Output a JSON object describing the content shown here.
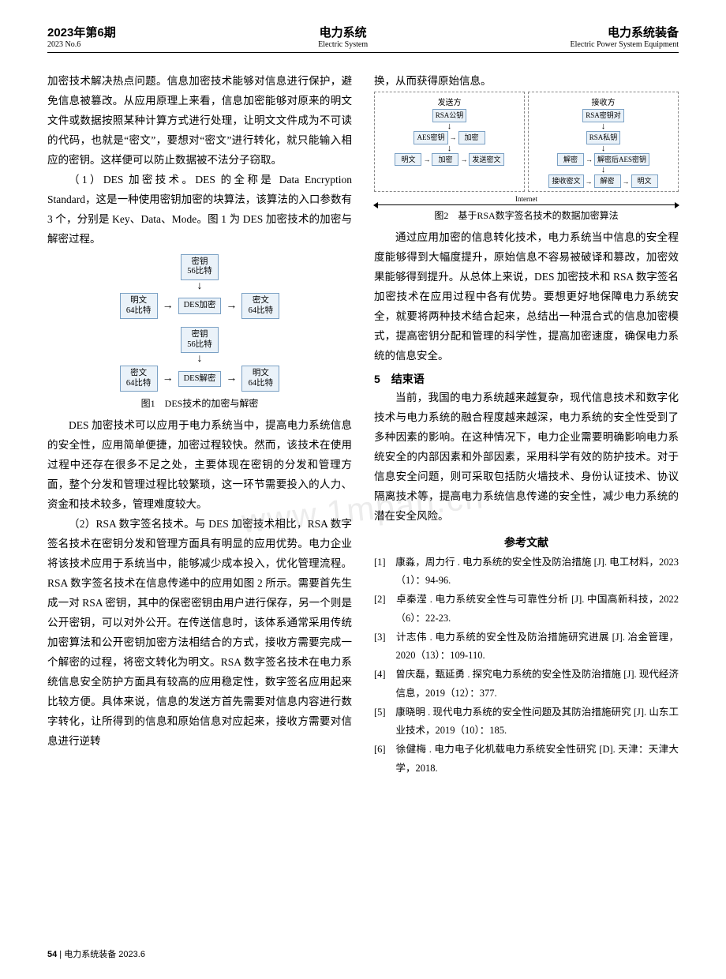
{
  "header": {
    "left_cn": "2023年第6期",
    "left_en": "2023 No.6",
    "center_cn": "电力系统",
    "center_en": "Electric System",
    "right_cn": "电力系统装备",
    "right_en": "Electric Power System Equipment"
  },
  "col_left": {
    "p1": "加密技术解决热点问题。信息加密技术能够对信息进行保护，避免信息被篡改。从应用原理上来看，信息加密能够对原来的明文文件或数据按照某种计算方式进行处理，让明文文件成为不可读的代码，也就是“密文”，要想对“密文”进行转化，就只能输入相应的密钥。这样便可以防止数据被不法分子窃取。",
    "p2": "（1）DES 加密技术。DES 的全称是 Data Encryption Standard，这是一种使用密钥加密的块算法，该算法的入口参数有 3 个，分别是 Key、Data、Mode。图 1 为 DES 加密技术的加密与解密过程。",
    "fig1_cap": "图1　DES技术的加密与解密",
    "p3": "DES 加密技术可以应用于电力系统当中，提高电力系统信息的安全性，应用简单便捷，加密过程较快。然而，该技术在使用过程中还存在很多不足之处，主要体现在密钥的分发和管理方面，整个分发和管理过程比较繁琐，这一环节需要投入的人力、资金和技术较多，管理难度较大。",
    "p4": "（2）RSA 数字签名技术。与 DES 加密技术相比，RSA 数字签名技术在密钥分发和管理方面具有明显的应用优势。电力企业将该技术应用于系统当中，能够减少成本投入，优化管理流程。RSA 数字签名技术在信息传递中的应用如图 2 所示。需要首先生成一对 RSA 密钥，其中的保密密钥由用户进行保存，另一个则是公开密钥，可以对外公开。在传送信息时，该体系通常采用传统加密算法和公开密钥加密方法相结合的方式，接收方需要完成一个解密的过程，将密文转化为明文。RSA 数字签名技术在电力系统信息安全防护方面具有较高的应用稳定性，数字签名应用起来比较方便。具体来说，信息的发送方首先需要对信息内容进行数字转化，让所得到的信息和原始信息对应起来，接收方需要对信息进行逆转"
  },
  "fig1": {
    "key_top": "密钥\n56比特",
    "plain": "明文\n64比特",
    "enc": "DES加密",
    "cipher": "密文\n64比特",
    "key_bot": "密钥\n56比特",
    "cipher2": "密文\n64比特",
    "dec": "DES解密",
    "plain2": "明文\n64比特"
  },
  "col_right": {
    "p1": "换，从而获得原始信息。",
    "fig2_cap": "图2　基于RSA数字签名技术的数据加密算法",
    "p2": "通过应用加密的信息转化技术，电力系统当中信息的安全程度能够得到大幅度提升，原始信息不容易被破译和篡改，加密效果能够得到提升。从总体上来说，DES 加密技术和 RSA 数字签名加密技术在应用过程中各有优势。要想更好地保障电力系统安全，就要将两种技术结合起来，总结出一种混合式的信息加密模式，提高密钥分配和管理的科学性，提高加密速度，确保电力系统的信息安全。",
    "sec5": "5　结束语",
    "p3": "当前，我国的电力系统越来越复杂，现代信息技术和数字化技术与电力系统的融合程度越来越深，电力系统的安全性受到了多种因素的影响。在这种情况下，电力企业需要明确影响电力系统安全的内部因素和外部因素，采用科学有效的防护技术。对于信息安全问题，则可采取包括防火墙技术、身份认证技术、协议隔离技术等，提高电力系统信息传递的安全性，减少电力系统的潜在安全风险。",
    "ref_title": "参考文献",
    "refs": [
      "[1]　康淼，周力行 . 电力系统的安全性及防治措施 [J]. 电工材料，2023（1）：94-96.",
      "[2]　卓秦滢 . 电力系统安全性与可靠性分析 [J]. 中国高新科技，2022（6）：22-23.",
      "[3]　计志伟 . 电力系统的安全性及防治措施研究进展 [J]. 冶金管理，2020（13）：109-110.",
      "[4]　曾庆磊，甄延勇 . 探究电力系统的安全性及防治措施 [J]. 现代经济信息，2019（12）：377.",
      "[5]　康晓明 . 现代电力系统的安全性问题及其防治措施研究 [J]. 山东工业技术，2019（10）：185.",
      "[6]　徐健梅 . 电力电子化机载电力系统安全性研究 [D]. 天津：天津大学，2018."
    ]
  },
  "fig2": {
    "sender": "发送方",
    "receiver": "接收方",
    "rsa_pub": "RSA公钥",
    "rsa_pair": "RSA密钥对",
    "rsa_priv": "RSA私钥",
    "aes_key": "AES密钥",
    "enc": "加密",
    "dec": "解密",
    "dec_aes": "解密后AES密钥",
    "plain": "明文",
    "send_cipher": "发送密文",
    "recv_cipher": "接收密文",
    "internet": "Internet"
  },
  "watermark": "www.1mpan.cn",
  "footer": {
    "page": "54",
    "sep": " | ",
    "title": "电力系统装备",
    "issue": "  2023.6"
  },
  "colors": {
    "box_border": "#7aa0c4",
    "box_fill": "#eaf2f9",
    "text": "#000000",
    "bg": "#ffffff",
    "dash": "#888888",
    "watermark": "rgba(150,150,150,0.18)"
  }
}
